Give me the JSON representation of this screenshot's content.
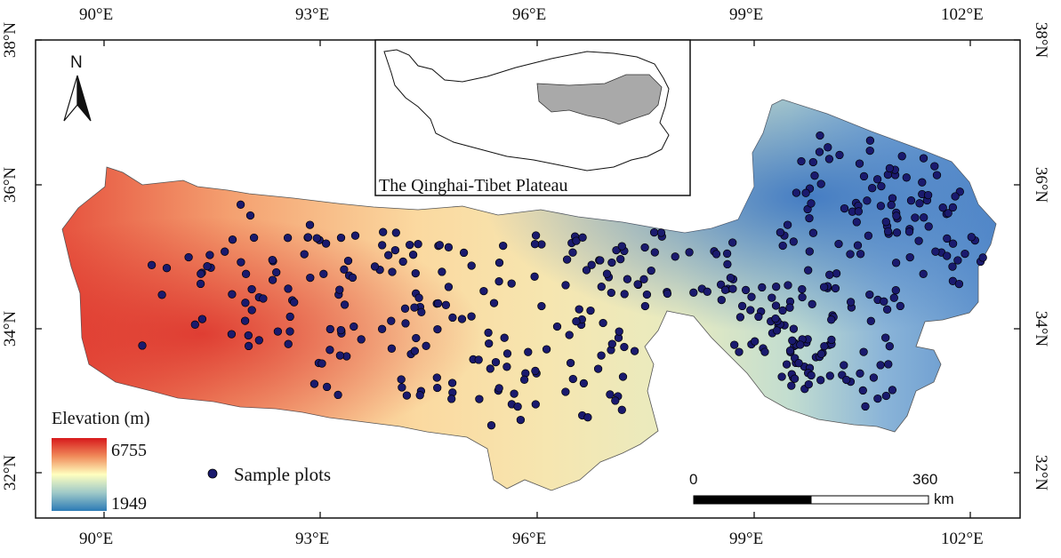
{
  "map": {
    "inset_caption": "The Qinghai-Tibet Plateau",
    "north_letter": "N",
    "lon_ticks": [
      "90°E",
      "93°E",
      "96°E",
      "99°E",
      "102°E"
    ],
    "lat_ticks": [
      "38°N",
      "36°N",
      "34°N",
      "32°N"
    ],
    "legend": {
      "title": "Elevation (m)",
      "max_label": "6755",
      "min_label": "1949",
      "sample_label": "Sample plots",
      "colors": {
        "high": "#d7191c",
        "mid": "#ffffbf",
        "low": "#2c7bb6",
        "dot": "#1a1a6e"
      }
    },
    "scale_bar": {
      "zero": "0",
      "max": "360",
      "unit": "km"
    }
  }
}
